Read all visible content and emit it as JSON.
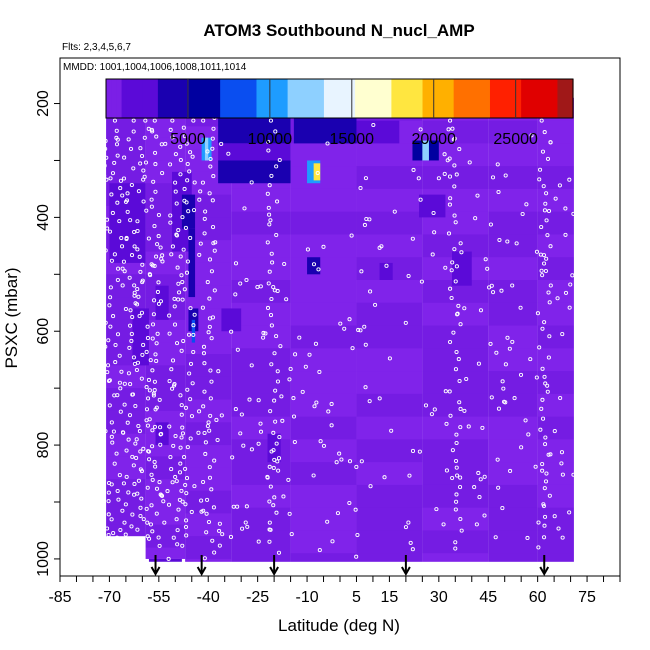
{
  "chart_data": {
    "type": "heatmap",
    "title": "ATOM3 Southbound N_nucl_AMP",
    "flights_text": "Flts: 2,3,4,5,6,7",
    "dates_text": "MMDD: 1001,1004,1006,1008,1011,1014",
    "xlabel": "Latitude (deg N)",
    "ylabel": "PSXC (mbar)",
    "xlim": [
      -85,
      85
    ],
    "ylim": [
      1030,
      120
    ],
    "x_ticks": [
      -85,
      -70,
      -55,
      -40,
      -25,
      -10,
      5,
      15,
      30,
      45,
      60,
      75
    ],
    "y_ticks": [
      200,
      400,
      600,
      800,
      1000
    ],
    "colorbar": {
      "min": 0,
      "max": 28500,
      "ticks": [
        5000,
        10000,
        15000,
        20000,
        25000
      ],
      "tick_labels": [
        "5000",
        "10000",
        "15000",
        "20000",
        "25000"
      ],
      "colors": [
        "#7b1fe6",
        "#5b0ad8",
        "#1a00b0",
        "#0000a0",
        "#0a4ef0",
        "#1e9cff",
        "#8ed0ff",
        "#e8f4ff",
        "#ffffd0",
        "#ffe640",
        "#ffb000",
        "#ff7000",
        "#ff2000",
        "#e00000",
        "#a01818"
      ]
    },
    "arrow_latitudes": [
      -56,
      -42,
      -20,
      20,
      62
    ],
    "background_value": 400,
    "latitude_columns": [
      {
        "lat0": -71,
        "lat1": -59,
        "top": 220,
        "bottom": 960
      },
      {
        "lat0": -59,
        "lat1": -47,
        "top": 220,
        "bottom": 1000
      },
      {
        "lat0": -47,
        "lat1": -33,
        "top": 200,
        "bottom": 1005
      },
      {
        "lat0": -33,
        "lat1": -15,
        "top": 190,
        "bottom": 1005
      },
      {
        "lat0": -15,
        "lat1": 5,
        "top": 190,
        "bottom": 1005
      },
      {
        "lat0": 5,
        "lat1": 25,
        "top": 190,
        "bottom": 1005
      },
      {
        "lat0": 25,
        "lat1": 45,
        "top": 190,
        "bottom": 1005
      },
      {
        "lat0": 45,
        "lat1": 60,
        "top": 190,
        "bottom": 1005
      },
      {
        "lat0": 60,
        "lat1": 71,
        "top": 190,
        "bottom": 1005
      }
    ],
    "patches": [
      {
        "lat0": -37,
        "lat1": -15,
        "p0": 220,
        "p1": 270,
        "value": 3500
      },
      {
        "lat0": -37,
        "lat1": -15,
        "p0": 270,
        "p1": 300,
        "value": 1800
      },
      {
        "lat0": -37,
        "lat1": -15,
        "p0": 300,
        "p1": 340,
        "value": 3500
      },
      {
        "lat0": -42,
        "lat1": -39,
        "p0": 260,
        "p1": 300,
        "value": 9500
      },
      {
        "lat0": -41,
        "lat1": -40,
        "p0": 260,
        "p1": 300,
        "value": 12500
      },
      {
        "lat0": -12,
        "lat1": -8,
        "p0": 215,
        "p1": 245,
        "value": 7500
      },
      {
        "lat0": -14,
        "lat1": 5,
        "p0": 220,
        "p1": 270,
        "value": 3500
      },
      {
        "lat0": -10,
        "lat1": -6,
        "p0": 300,
        "p1": 340,
        "value": 9500
      },
      {
        "lat0": -8,
        "lat1": -6,
        "p0": 305,
        "p1": 335,
        "value": 19000
      },
      {
        "lat0": 5,
        "lat1": 18,
        "p0": 230,
        "p1": 270,
        "value": 2200
      },
      {
        "lat0": 22,
        "lat1": 30,
        "p0": 265,
        "p1": 300,
        "value": 6500
      },
      {
        "lat0": 25,
        "lat1": 27,
        "p0": 265,
        "p1": 300,
        "value": 11500
      },
      {
        "lat0": 24,
        "lat1": 32,
        "p0": 360,
        "p1": 400,
        "value": 2800
      },
      {
        "lat0": -51,
        "lat1": -45,
        "p0": 320,
        "p1": 460,
        "value": 2500
      },
      {
        "lat0": -48,
        "lat1": -44,
        "p0": 360,
        "p1": 420,
        "value": 4800
      },
      {
        "lat0": -46,
        "lat1": -44,
        "p0": 420,
        "p1": 540,
        "value": 3500
      },
      {
        "lat0": -46,
        "lat1": -43,
        "p0": 560,
        "p1": 600,
        "value": 3500
      },
      {
        "lat0": -45,
        "lat1": -44,
        "p0": 580,
        "p1": 620,
        "value": 8800
      },
      {
        "lat0": -56,
        "lat1": -52,
        "p0": 520,
        "p1": 580,
        "value": 2400
      },
      {
        "lat0": -70,
        "lat1": -59,
        "p0": 340,
        "p1": 480,
        "value": 1500
      },
      {
        "lat0": -63,
        "lat1": -58,
        "p0": 560,
        "p1": 660,
        "value": 1300
      },
      {
        "lat0": -36,
        "lat1": -30,
        "p0": 560,
        "p1": 600,
        "value": 1400
      },
      {
        "lat0": -10,
        "lat1": -6,
        "p0": 470,
        "p1": 500,
        "value": 3500
      },
      {
        "lat0": 12,
        "lat1": 16,
        "p0": 480,
        "p1": 510,
        "value": 2200
      },
      {
        "lat0": 34,
        "lat1": 40,
        "p0": 460,
        "p1": 520,
        "value": 1500
      },
      {
        "lat0": -22,
        "lat1": -18,
        "p0": 780,
        "p1": 830,
        "value": 1500
      },
      {
        "lat0": -56,
        "lat1": -52,
        "p0": 760,
        "p1": 800,
        "value": 1600
      },
      {
        "lat0": -58,
        "lat1": -48,
        "p0": 1000,
        "p1": 1005,
        "value": 1100
      }
    ]
  }
}
